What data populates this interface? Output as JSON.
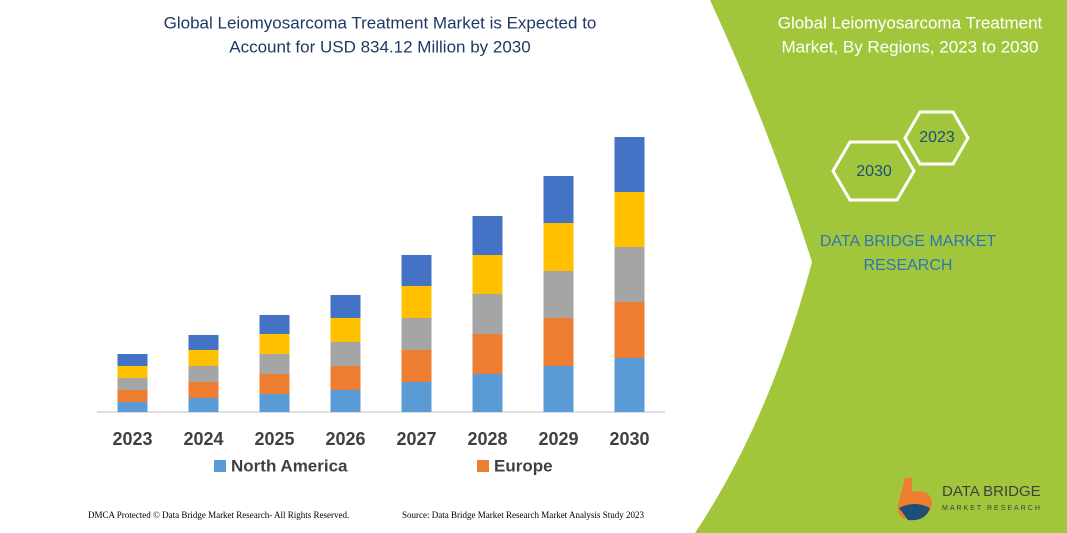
{
  "chart_data": {
    "type": "stacked-bar",
    "title": [
      "Global Leiomyosarcoma Treatment Market is Expected to",
      "Account for USD 834.12 Million by 2030"
    ],
    "categories": [
      "2023",
      "2024",
      "2025",
      "2026",
      "2027",
      "2028",
      "2029",
      "2030"
    ],
    "series": [
      {
        "name": "North America",
        "color": "#5b9bd5",
        "values": [
          10,
          14,
          18,
          22,
          30,
          38,
          46,
          54
        ]
      },
      {
        "name": "Europe",
        "color": "#ed7d31",
        "values": [
          12,
          16,
          20,
          24,
          32,
          40,
          48,
          56
        ]
      },
      {
        "color": "#a5a5a5",
        "values": [
          12,
          16,
          20,
          24,
          32,
          40,
          47,
          55
        ]
      },
      {
        "color": "#ffc000",
        "values": [
          12,
          16,
          20,
          24,
          32,
          39,
          48,
          55
        ]
      },
      {
        "color": "#4472c4",
        "values": [
          12,
          15,
          19,
          23,
          31,
          39,
          47,
          55
        ]
      }
    ]
  },
  "panel": {
    "title": [
      "Global Leiomyosarcoma Treatment",
      "Market, By Regions, 2023 to 2030"
    ],
    "hexagons": [
      "2023",
      "2030"
    ],
    "brand": [
      "DATA BRIDGE MARKET",
      "RESEARCH"
    ]
  },
  "footer": {
    "rights": "DMCA Protected © Data Bridge Market Research-  All Rights Reserved.",
    "source": "Source: Data Bridge Market Research  Market Analysis Study 2023"
  },
  "logo": {
    "name": "DATA BRIDGE",
    "tagline": "MARKET RESEARCH"
  }
}
